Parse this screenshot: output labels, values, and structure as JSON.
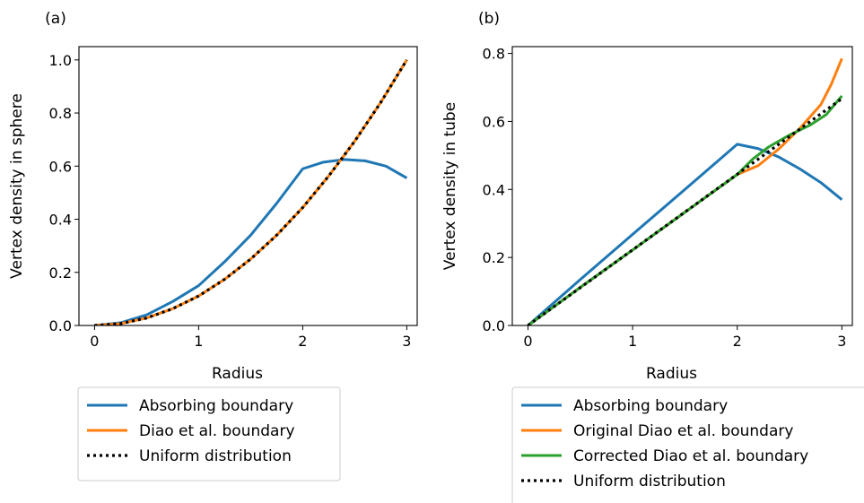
{
  "chart_data": [
    {
      "type": "line",
      "panel_label": "(a)",
      "xlabel": "Radius",
      "ylabel": "Vertex density in sphere",
      "xlim": [
        -0.15,
        3.1
      ],
      "ylim": [
        0,
        1.05
      ],
      "xticks": [
        0,
        1,
        2,
        3
      ],
      "xtick_labels": [
        "0",
        "1",
        "2",
        "3"
      ],
      "yticks": [
        0,
        0.2,
        0.4,
        0.6,
        0.8,
        1.0
      ],
      "ytick_labels": [
        "0.0",
        "0.2",
        "0.4",
        "0.6",
        "0.8",
        "1.0"
      ],
      "grid": false,
      "legend_placement": "below",
      "series": [
        {
          "name": "Absorbing boundary",
          "color": "#1f77b4",
          "style": "solid",
          "x": [
            0,
            0.25,
            0.5,
            0.75,
            1.0,
            1.25,
            1.5,
            1.75,
            2.0,
            2.2,
            2.4,
            2.6,
            2.8,
            3.0
          ],
          "y": [
            0,
            0.01,
            0.04,
            0.09,
            0.15,
            0.24,
            0.34,
            0.46,
            0.59,
            0.615,
            0.625,
            0.62,
            0.6,
            0.555
          ]
        },
        {
          "name": "Diao et al. boundary",
          "color": "#ff7f0e",
          "style": "solid",
          "x": [
            0,
            0.25,
            0.5,
            0.75,
            1.0,
            1.25,
            1.5,
            1.75,
            2.0,
            2.25,
            2.5,
            2.75,
            3.0
          ],
          "y": [
            0,
            0.007,
            0.028,
            0.063,
            0.111,
            0.174,
            0.25,
            0.34,
            0.444,
            0.563,
            0.694,
            0.84,
            1.0
          ]
        },
        {
          "name": "Uniform distribution",
          "color": "#000000",
          "style": "dotted",
          "x": [
            0,
            0.25,
            0.5,
            0.75,
            1.0,
            1.25,
            1.5,
            1.75,
            2.0,
            2.25,
            2.5,
            2.75,
            3.0
          ],
          "y": [
            0,
            0.007,
            0.028,
            0.063,
            0.111,
            0.174,
            0.25,
            0.34,
            0.444,
            0.563,
            0.694,
            0.84,
            1.0
          ]
        }
      ]
    },
    {
      "type": "line",
      "panel_label": "(b)",
      "xlabel": "Radius",
      "ylabel": "Vertex density in tube",
      "xlim": [
        -0.15,
        3.1
      ],
      "ylim": [
        0,
        0.82
      ],
      "xticks": [
        0,
        1,
        2,
        3
      ],
      "xtick_labels": [
        "0",
        "1",
        "2",
        "3"
      ],
      "yticks": [
        0,
        0.2,
        0.4,
        0.6,
        0.8
      ],
      "ytick_labels": [
        "0.0",
        "0.2",
        "0.4",
        "0.6",
        "0.8"
      ],
      "grid": false,
      "legend_placement": "below",
      "series": [
        {
          "name": "Absorbing boundary",
          "color": "#1f77b4",
          "style": "solid",
          "x": [
            0,
            0.5,
            1.0,
            1.5,
            2.0,
            2.2,
            2.4,
            2.6,
            2.8,
            3.0
          ],
          "y": [
            0,
            0.135,
            0.268,
            0.4,
            0.533,
            0.52,
            0.495,
            0.46,
            0.42,
            0.37
          ]
        },
        {
          "name": "Original Diao et al. boundary",
          "color": "#ff7f0e",
          "style": "solid",
          "x": [
            0,
            0.5,
            1.0,
            1.5,
            2.0,
            2.2,
            2.4,
            2.6,
            2.8,
            2.9,
            3.0
          ],
          "y": [
            0,
            0.112,
            0.222,
            0.333,
            0.444,
            0.47,
            0.52,
            0.58,
            0.65,
            0.71,
            0.785
          ]
        },
        {
          "name": "Corrected Diao et al. boundary",
          "color": "#2ca02c",
          "style": "solid",
          "x": [
            0,
            0.5,
            1.0,
            1.5,
            2.0,
            2.15,
            2.3,
            2.5,
            2.7,
            2.85,
            3.0
          ],
          "y": [
            0,
            0.112,
            0.222,
            0.333,
            0.444,
            0.49,
            0.525,
            0.56,
            0.59,
            0.62,
            0.675
          ]
        },
        {
          "name": "Uniform distribution",
          "color": "#000000",
          "style": "dotted",
          "x": [
            0,
            3.0
          ],
          "y": [
            0,
            0.667
          ]
        }
      ]
    }
  ]
}
